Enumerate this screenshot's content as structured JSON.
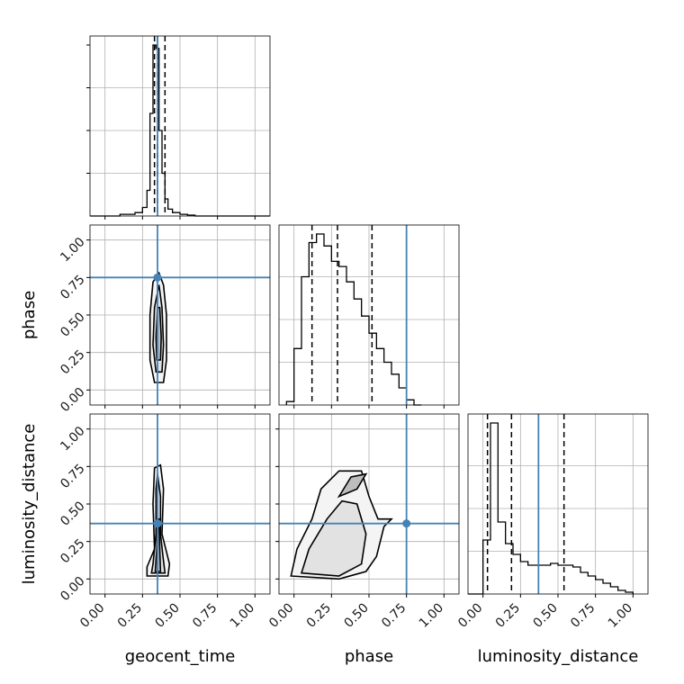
{
  "chart_data": {
    "type": "corner",
    "parameters": [
      "geocent_time",
      "phase",
      "luminosity_distance"
    ],
    "axis_labels": [
      "geocent_time",
      "phase",
      "luminosity_distance"
    ],
    "ticks": {
      "values": [
        0.0,
        0.25,
        0.5,
        0.75,
        1.0
      ],
      "labels": [
        "0.00",
        "0.25",
        "0.50",
        "0.75",
        "1.00"
      ]
    },
    "range": [
      -0.1,
      1.1
    ],
    "truths": {
      "geocent_time": 0.35,
      "phase": 0.75,
      "luminosity_distance": 0.37
    },
    "truth_color": "#4682b4",
    "grid": true,
    "histograms": [
      {
        "parameter": "geocent_time",
        "bin_edges": [
          -0.1,
          0.0,
          0.1,
          0.2,
          0.25,
          0.28,
          0.3,
          0.32,
          0.34,
          0.36,
          0.38,
          0.4,
          0.42,
          0.45,
          0.5,
          0.55,
          0.6,
          0.7,
          0.8,
          1.1
        ],
        "counts": [
          0,
          0,
          0.01,
          0.02,
          0.05,
          0.15,
          0.6,
          1.0,
          0.98,
          0.5,
          0.25,
          0.1,
          0.04,
          0.02,
          0.01,
          0.005,
          0,
          0,
          0
        ],
        "quantiles": [
          0.33,
          0.35,
          0.4
        ]
      },
      {
        "parameter": "phase",
        "bin_edges": [
          -0.05,
          0.0,
          0.05,
          0.1,
          0.15,
          0.2,
          0.25,
          0.3,
          0.35,
          0.4,
          0.45,
          0.5,
          0.55,
          0.6,
          0.65,
          0.7,
          0.75,
          0.8,
          0.85
        ],
        "counts": [
          0.02,
          0.33,
          0.75,
          0.95,
          1.0,
          0.93,
          0.84,
          0.81,
          0.72,
          0.62,
          0.52,
          0.42,
          0.33,
          0.25,
          0.18,
          0.1,
          0.03,
          0
        ],
        "quantiles": [
          0.12,
          0.29,
          0.52
        ]
      },
      {
        "parameter": "luminosity_distance",
        "bin_edges": [
          -0.1,
          0.0,
          0.05,
          0.1,
          0.15,
          0.2,
          0.25,
          0.3,
          0.35,
          0.4,
          0.45,
          0.5,
          0.55,
          0.6,
          0.65,
          0.7,
          0.75,
          0.8,
          0.85,
          0.9,
          0.95,
          1.0
        ],
        "counts": [
          0,
          0.3,
          0.95,
          0.4,
          0.28,
          0.22,
          0.18,
          0.16,
          0.16,
          0.16,
          0.17,
          0.16,
          0.16,
          0.15,
          0.12,
          0.1,
          0.08,
          0.06,
          0.04,
          0.02,
          0.01
        ],
        "quantiles": [
          0.03,
          0.19,
          0.54
        ]
      }
    ],
    "joint_densities": [
      {
        "x": "geocent_time",
        "y": "phase",
        "contours": [
          [
            [
              0.33,
              0.05
            ],
            [
              0.39,
              0.05
            ],
            [
              0.41,
              0.2
            ],
            [
              0.41,
              0.5
            ],
            [
              0.39,
              0.7
            ],
            [
              0.36,
              0.78
            ],
            [
              0.32,
              0.72
            ],
            [
              0.3,
              0.5
            ],
            [
              0.3,
              0.2
            ]
          ],
          [
            [
              0.34,
              0.12
            ],
            [
              0.38,
              0.12
            ],
            [
              0.39,
              0.3
            ],
            [
              0.38,
              0.55
            ],
            [
              0.36,
              0.7
            ],
            [
              0.33,
              0.55
            ],
            [
              0.32,
              0.3
            ]
          ],
          [
            [
              0.345,
              0.2
            ],
            [
              0.37,
              0.2
            ],
            [
              0.375,
              0.35
            ],
            [
              0.365,
              0.55
            ],
            [
              0.35,
              0.55
            ],
            [
              0.34,
              0.35
            ]
          ]
        ]
      },
      {
        "x": "geocent_time",
        "y": "luminosity_distance",
        "contours": [
          [
            [
              0.28,
              0.02
            ],
            [
              0.42,
              0.02
            ],
            [
              0.43,
              0.1
            ],
            [
              0.38,
              0.3
            ],
            [
              0.39,
              0.6
            ],
            [
              0.37,
              0.76
            ],
            [
              0.33,
              0.74
            ],
            [
              0.32,
              0.5
            ],
            [
              0.33,
              0.2
            ],
            [
              0.28,
              0.08
            ]
          ],
          [
            [
              0.31,
              0.04
            ],
            [
              0.4,
              0.04
            ],
            [
              0.39,
              0.12
            ],
            [
              0.37,
              0.3
            ],
            [
              0.37,
              0.55
            ],
            [
              0.35,
              0.7
            ],
            [
              0.34,
              0.6
            ],
            [
              0.34,
              0.3
            ],
            [
              0.32,
              0.1
            ]
          ],
          [
            [
              0.335,
              0.05
            ],
            [
              0.37,
              0.05
            ],
            [
              0.365,
              0.2
            ],
            [
              0.36,
              0.4
            ],
            [
              0.35,
              0.4
            ],
            [
              0.345,
              0.2
            ]
          ]
        ]
      },
      {
        "x": "phase",
        "y": "luminosity_distance",
        "contours": [
          [
            [
              -0.02,
              0.02
            ],
            [
              0.3,
              0.0
            ],
            [
              0.48,
              0.05
            ],
            [
              0.55,
              0.15
            ],
            [
              0.6,
              0.35
            ],
            [
              0.65,
              0.4
            ],
            [
              0.56,
              0.4
            ],
            [
              0.5,
              0.55
            ],
            [
              0.45,
              0.72
            ],
            [
              0.3,
              0.72
            ],
            [
              0.18,
              0.6
            ],
            [
              0.12,
              0.4
            ],
            [
              0.02,
              0.2
            ]
          ],
          [
            [
              0.05,
              0.04
            ],
            [
              0.3,
              0.02
            ],
            [
              0.45,
              0.1
            ],
            [
              0.48,
              0.3
            ],
            [
              0.42,
              0.5
            ],
            [
              0.32,
              0.52
            ],
            [
              0.22,
              0.4
            ],
            [
              0.1,
              0.2
            ]
          ],
          [
            [
              0.3,
              0.55
            ],
            [
              0.42,
              0.6
            ],
            [
              0.48,
              0.7
            ],
            [
              0.38,
              0.68
            ]
          ]
        ]
      }
    ]
  }
}
